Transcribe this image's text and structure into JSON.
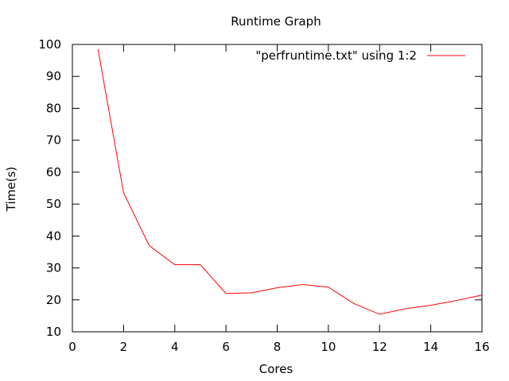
{
  "chart_data": {
    "type": "line",
    "title": "Runtime Graph",
    "xlabel": "Cores",
    "ylabel": "Time(s)",
    "xlim": [
      0,
      16
    ],
    "ylim": [
      10,
      100
    ],
    "xticks": [
      0,
      2,
      4,
      6,
      8,
      10,
      12,
      14,
      16
    ],
    "yticks": [
      10,
      20,
      30,
      40,
      50,
      60,
      70,
      80,
      90,
      100
    ],
    "grid": false,
    "legend_position": "top-right",
    "series": [
      {
        "name": "\"perfruntime.txt\" using 1:2",
        "color": "#ff0000",
        "x": [
          1,
          2,
          3,
          4,
          5,
          6,
          7,
          8,
          9,
          10,
          11,
          12,
          13,
          14,
          15,
          16
        ],
        "y": [
          98.5,
          53.5,
          37,
          31,
          31,
          22,
          22.2,
          23.8,
          24.8,
          24,
          18.8,
          15.5,
          17.2,
          18.3,
          19.8,
          21.5
        ]
      }
    ]
  }
}
